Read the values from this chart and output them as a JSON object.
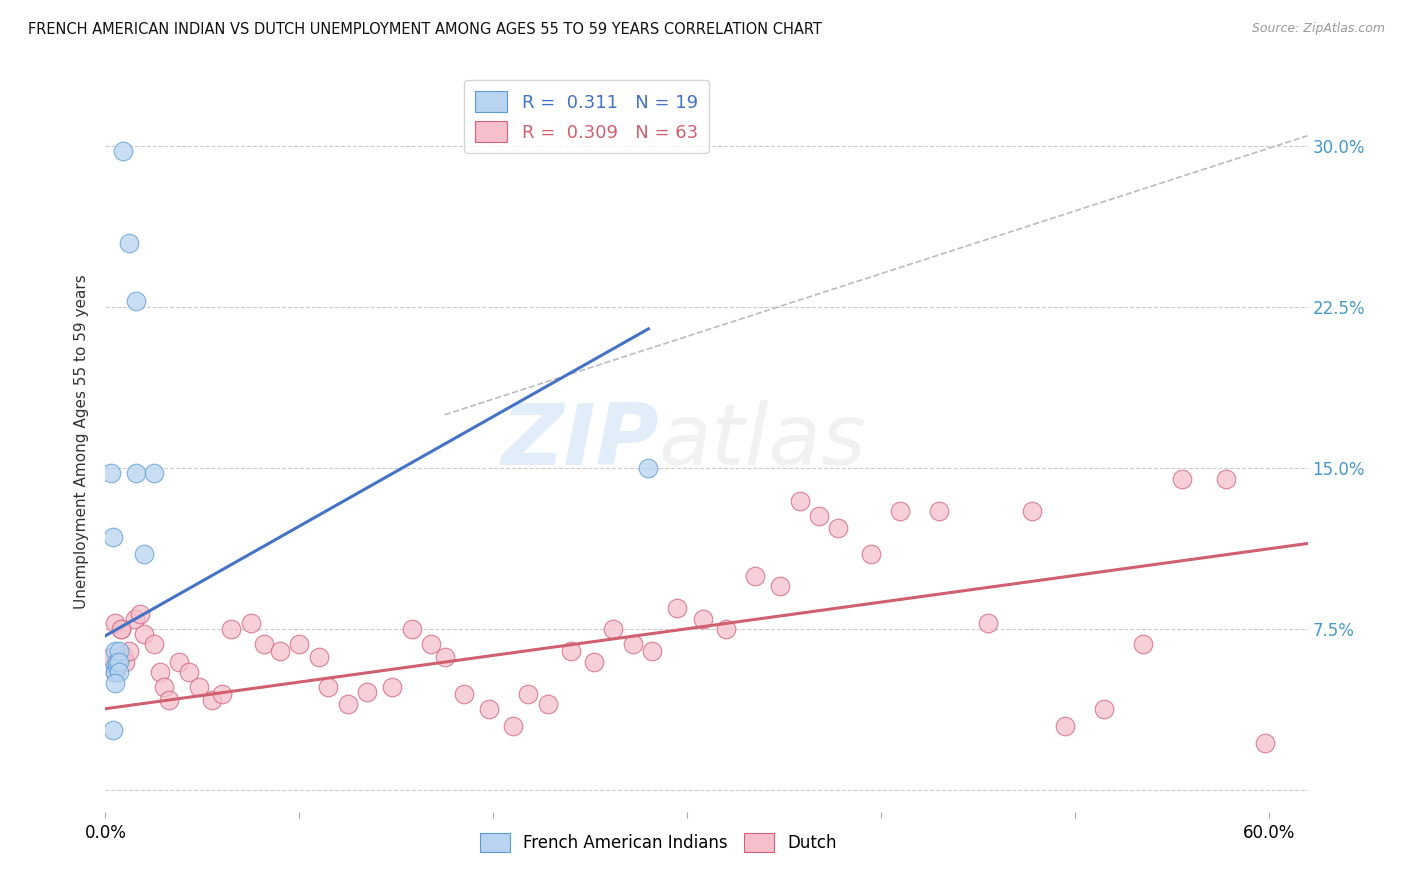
{
  "title": "FRENCH AMERICAN INDIAN VS DUTCH UNEMPLOYMENT AMONG AGES 55 TO 59 YEARS CORRELATION CHART",
  "source": "Source: ZipAtlas.com",
  "ylabel": "Unemployment Among Ages 55 to 59 years",
  "xlim": [
    0,
    0.62
  ],
  "ylim": [
    -0.01,
    0.335
  ],
  "color_blue_fill": "#B8D4F0",
  "color_blue_edge": "#5B9BD5",
  "color_pink_fill": "#F5C0CC",
  "color_pink_edge": "#D0607A",
  "color_blue_line": "#4472C4",
  "color_pink_line": "#D06070",
  "color_dashed": "#BBBBBB",
  "french_x": [
    0.009,
    0.012,
    0.016,
    0.016,
    0.02,
    0.025,
    0.003,
    0.004,
    0.005,
    0.005,
    0.005,
    0.006,
    0.006,
    0.007,
    0.007,
    0.007,
    0.28,
    0.004,
    0.005
  ],
  "french_y": [
    0.298,
    0.255,
    0.228,
    0.148,
    0.11,
    0.148,
    0.148,
    0.118,
    0.065,
    0.058,
    0.055,
    0.058,
    0.06,
    0.065,
    0.06,
    0.055,
    0.15,
    0.028,
    0.05
  ],
  "dutch_x": [
    0.003,
    0.005,
    0.006,
    0.008,
    0.009,
    0.01,
    0.012,
    0.015,
    0.018,
    0.02,
    0.025,
    0.028,
    0.03,
    0.033,
    0.038,
    0.043,
    0.048,
    0.055,
    0.06,
    0.065,
    0.075,
    0.082,
    0.09,
    0.1,
    0.11,
    0.115,
    0.125,
    0.135,
    0.148,
    0.158,
    0.168,
    0.175,
    0.185,
    0.198,
    0.21,
    0.218,
    0.228,
    0.24,
    0.252,
    0.262,
    0.272,
    0.282,
    0.295,
    0.308,
    0.32,
    0.335,
    0.348,
    0.358,
    0.368,
    0.378,
    0.395,
    0.41,
    0.43,
    0.455,
    0.478,
    0.495,
    0.515,
    0.535,
    0.555,
    0.578,
    0.598,
    0.005,
    0.008
  ],
  "dutch_y": [
    0.062,
    0.055,
    0.06,
    0.075,
    0.063,
    0.06,
    0.065,
    0.08,
    0.082,
    0.073,
    0.068,
    0.055,
    0.048,
    0.042,
    0.06,
    0.055,
    0.048,
    0.042,
    0.045,
    0.075,
    0.078,
    0.068,
    0.065,
    0.068,
    0.062,
    0.048,
    0.04,
    0.046,
    0.048,
    0.075,
    0.068,
    0.062,
    0.045,
    0.038,
    0.03,
    0.045,
    0.04,
    0.065,
    0.06,
    0.075,
    0.068,
    0.065,
    0.085,
    0.08,
    0.075,
    0.1,
    0.095,
    0.135,
    0.128,
    0.122,
    0.11,
    0.13,
    0.13,
    0.078,
    0.13,
    0.03,
    0.038,
    0.068,
    0.145,
    0.145,
    0.022,
    0.078,
    0.075
  ],
  "blue_line_x": [
    0.0,
    0.28
  ],
  "blue_line_y": [
    0.072,
    0.215
  ],
  "pink_line_x": [
    0.0,
    0.62
  ],
  "pink_line_y": [
    0.038,
    0.115
  ],
  "diag_line_x": [
    0.175,
    0.62
  ],
  "diag_line_y": [
    0.175,
    0.305
  ],
  "yticks": [
    0.0,
    0.075,
    0.15,
    0.225,
    0.3
  ]
}
